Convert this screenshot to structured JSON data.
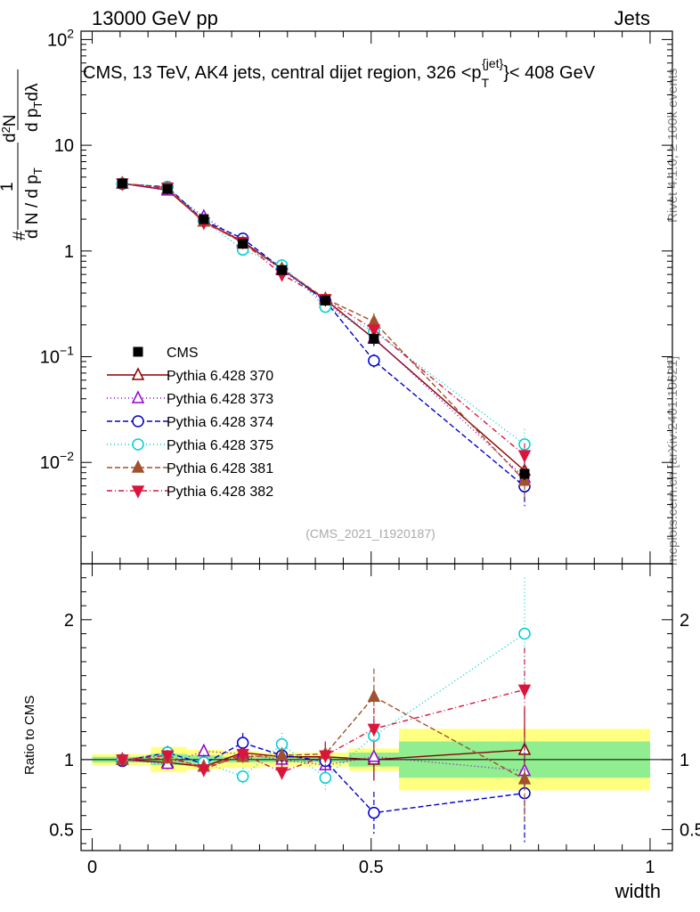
{
  "header": {
    "energy_label": "13000 GeV pp",
    "process_label": "Jets"
  },
  "side_labels": {
    "rivet": "Rivet 4.1.0, ≥ 100k events",
    "mcplots": "mcplots.cern.ch [arXiv:2401.10621]"
  },
  "chart_data": {
    "type": "line",
    "title": "CMS, 13 TeV, AK4 jets, central dijet region, 326 < p_T^{jet} < 408 GeV",
    "title_prefix": "CMS, 13 TeV, AK4 jets, central dijet region, 326 <p",
    "title_sub": "T",
    "title_sup": "{jet}",
    "title_suffix": "}< 408 GeV",
    "analysis_tag": "(CMS_2021_I1920187)",
    "ylabel": "1/(dN/dp_T) d²N/(dp_T dλ)",
    "ylabel_parts": {
      "hash": "#",
      "frac_num": "1",
      "frac_den_a": "d N / d p",
      "frac_den_sub": "T",
      "frac2_num_a": "d",
      "frac2_num_sup": "2",
      "frac2_num_b": "N",
      "frac2_den_a": "d p",
      "frac2_den_sub": "T",
      "frac2_den_b": "d",
      "lambda": "λ"
    },
    "xlabel": "width",
    "ratio_ylabel": "Ratio to CMS",
    "xlim": [
      -0.02,
      1.04
    ],
    "ylim_log": [
      0.0011,
      120
    ],
    "ratio_ylim": [
      0.35,
      2.4
    ],
    "main_ticks": [
      {
        "value": 100,
        "base": "10",
        "exp": "2"
      },
      {
        "value": 10,
        "base": "10",
        "exp": ""
      },
      {
        "value": 1,
        "base": "1",
        "exp": ""
      },
      {
        "value": 0.1,
        "base": "10",
        "exp": "−1"
      },
      {
        "value": 0.01,
        "base": "10",
        "exp": "−2"
      }
    ],
    "x_ticks": [
      {
        "value": 0,
        "label": "0"
      },
      {
        "value": 0.5,
        "label": "0.5"
      },
      {
        "value": 1,
        "label": "1"
      }
    ],
    "ratio_ticks": [
      {
        "value": 0.5,
        "label": "0.5"
      },
      {
        "value": 1,
        "label": "1"
      },
      {
        "value": 2,
        "label": "2"
      }
    ],
    "bins": [
      {
        "lo": 0.0,
        "hi": 0.105,
        "center": 0.054,
        "data": 4.35,
        "err": 0.2,
        "band_stat": 0.02,
        "band_tot": 0.04
      },
      {
        "lo": 0.105,
        "hi": 0.17,
        "center": 0.135,
        "data": 3.85,
        "err": 0.17,
        "band_stat": 0.04,
        "band_tot": 0.09
      },
      {
        "lo": 0.17,
        "hi": 0.235,
        "center": 0.2,
        "data": 2.0,
        "err": 0.15,
        "band_stat": 0.03,
        "band_tot": 0.07
      },
      {
        "lo": 0.235,
        "hi": 0.3,
        "center": 0.27,
        "data": 1.17,
        "err": 0.09,
        "band_stat": 0.02,
        "band_tot": 0.06
      },
      {
        "lo": 0.3,
        "hi": 0.37,
        "center": 0.34,
        "data": 0.66,
        "err": 0.05,
        "band_stat": 0.02,
        "band_tot": 0.05
      },
      {
        "lo": 0.37,
        "hi": 0.46,
        "center": 0.418,
        "data": 0.34,
        "err": 0.04,
        "band_stat": 0.02,
        "band_tot": 0.05
      },
      {
        "lo": 0.46,
        "hi": 0.55,
        "center": 0.505,
        "data": 0.148,
        "err": 0.02,
        "band_stat": 0.05,
        "band_tot": 0.08
      },
      {
        "lo": 0.55,
        "hi": 1.0,
        "center": 0.775,
        "data": 0.0078,
        "err": 0.001,
        "band_stat": 0.13,
        "band_tot": 0.22
      }
    ],
    "series": [
      {
        "name": "CMS",
        "legend_label": "CMS",
        "color": "#000000",
        "dash": "",
        "marker": "square",
        "filled": true,
        "values": [
          4.35,
          3.85,
          2.0,
          1.17,
          0.66,
          0.34,
          0.148,
          0.0078
        ],
        "ratios": [
          1,
          1,
          1,
          1,
          1,
          1,
          1,
          1
        ],
        "errs": [
          0.2,
          0.17,
          0.15,
          0.09,
          0.05,
          0.04,
          0.02,
          0.001
        ]
      },
      {
        "name": "Pythia 6.428 370",
        "legend_label": "Pythia 6.428 370",
        "color": "#8b0000",
        "dash": "",
        "marker": "triangle-up",
        "filled": false,
        "ratios": [
          1.0,
          0.98,
          0.95,
          1.05,
          1.02,
          1.02,
          1.0,
          1.07
        ],
        "ratio_errs": [
          0.02,
          0.03,
          0.04,
          0.05,
          0.07,
          0.1,
          0.15,
          0.3
        ]
      },
      {
        "name": "Pythia 6.428 373",
        "legend_label": "Pythia 6.428 373",
        "color": "#9400d3",
        "dash": "1,3",
        "marker": "triangle-up",
        "filled": false,
        "ratios": [
          1.0,
          0.97,
          1.06,
          1.04,
          1.0,
          0.96,
          1.02,
          0.92
        ],
        "ratio_errs": [
          0.02,
          0.04,
          0.05,
          0.05,
          0.06,
          0.09,
          0.15,
          0.3
        ]
      },
      {
        "name": "Pythia 6.428 374",
        "legend_label": "Pythia 6.428 374",
        "color": "#0000cd",
        "dash": "6,3",
        "marker": "circle",
        "filled": false,
        "ratios": [
          0.99,
          1.05,
          0.97,
          1.12,
          1.03,
          0.99,
          0.62,
          0.76
        ],
        "ratio_errs": [
          0.03,
          0.05,
          0.06,
          0.07,
          0.08,
          0.1,
          0.15,
          0.35
        ]
      },
      {
        "name": "Pythia 6.428 375",
        "legend_label": "Pythia 6.428 375",
        "color": "#00ced1",
        "dash": "1,3",
        "marker": "circle",
        "filled": false,
        "ratios": [
          1.0,
          1.05,
          0.98,
          0.88,
          1.11,
          0.87,
          1.17,
          1.9
        ],
        "ratio_errs": [
          0.03,
          0.05,
          0.06,
          0.06,
          0.08,
          0.1,
          0.14,
          0.4
        ]
      },
      {
        "name": "Pythia 6.428 381",
        "legend_label": "Pythia 6.428 381",
        "color": "#a0522d",
        "dash": "6,3",
        "marker": "triangle-up",
        "filled": true,
        "ratios": [
          1.0,
          1.01,
          0.95,
          1.02,
          1.03,
          1.04,
          1.45,
          0.86
        ],
        "ratio_errs": [
          0.02,
          0.04,
          0.05,
          0.05,
          0.06,
          0.09,
          0.2,
          0.3
        ]
      },
      {
        "name": "Pythia 6.428 382",
        "legend_label": "Pythia 6.428 382",
        "color": "#dc143c",
        "dash": "6,3,1,3",
        "marker": "triangle-down",
        "filled": true,
        "ratios": [
          1.0,
          1.03,
          0.93,
          1.04,
          0.91,
          1.03,
          1.22,
          1.5
        ],
        "ratio_errs": [
          0.02,
          0.04,
          0.05,
          0.05,
          0.07,
          0.1,
          0.15,
          0.3
        ]
      }
    ]
  }
}
